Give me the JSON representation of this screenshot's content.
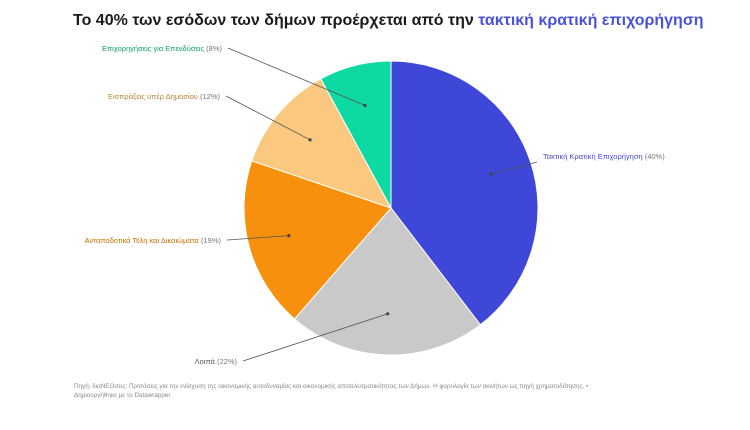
{
  "title": {
    "prefix": "Το 40% των εσόδων των δήμων προέρχεται από την ",
    "highlight": "τακτική κρατική επιχορήγηση",
    "highlight_color": "#4a52d6"
  },
  "chart_data": {
    "type": "pie",
    "title": "Το 40% των εσόδων των δήμων προέρχεται από την τακτική κρατική επιχορήγηση",
    "slices": [
      {
        "label": "Τακτική Κρατική Επιχορήγηση",
        "pct_text": "(40%)",
        "value": 40,
        "color": "#3f47d8",
        "label_color": "#3f47d8"
      },
      {
        "label": "Λοιπά",
        "pct_text": "(22%)",
        "value": 22,
        "color": "#c9c9c9",
        "label_color": "#555555"
      },
      {
        "label": "Ανταποδοτικά Τέλη και Δικαιώματα",
        "pct_text": "(19%)",
        "value": 19,
        "color": "#f7900d",
        "label_color": "#c86f00"
      },
      {
        "label": "Εισπράξεις υπέρ Δημοσίου",
        "pct_text": "(12%)",
        "value": 12,
        "color": "#fac87f",
        "label_color": "#b5852f"
      },
      {
        "label": "Επιχορηγήσεις για Επενδύσεις",
        "pct_text": "(8%)",
        "value": 8,
        "color": "#0fd9a2",
        "label_color": "#0a9c6f"
      }
    ],
    "legend": "none"
  },
  "footer": {
    "line1": "Πηγή: διαΝΕΟσεις: Προτάσεις για την ενίσχυση της οικονομικής αυτοδυναμίας και οικονομικής αποτελεσματικότητας των Δήμων. Η φορολογία των ακινήτων ως πηγή χρηματοδότησης. •",
    "line2": "Δημιουργήθηκε με το Datawrapper"
  }
}
